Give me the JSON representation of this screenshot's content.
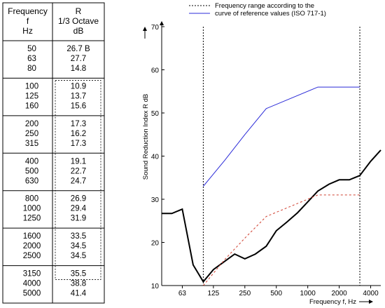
{
  "table": {
    "headers": {
      "freq": [
        "Frequency",
        "f",
        "Hz"
      ],
      "r": [
        "R",
        "1/3 Octave",
        "dB"
      ]
    },
    "groups": [
      {
        "freq": [
          "50",
          "63",
          "80"
        ],
        "r": [
          "26.7 B",
          "27.7",
          "14.8"
        ]
      },
      {
        "freq": [
          "100",
          "125",
          "160"
        ],
        "r": [
          "10.9",
          "13.7",
          "15.6"
        ]
      },
      {
        "freq": [
          "200",
          "250",
          "315"
        ],
        "r": [
          "17.3",
          "16.2",
          "17.3"
        ]
      },
      {
        "freq": [
          "400",
          "500",
          "630"
        ],
        "r": [
          "19.1",
          "22.7",
          "24.7"
        ]
      },
      {
        "freq": [
          "800",
          "1000",
          "1250"
        ],
        "r": [
          "26.9",
          "29.4",
          "31.9"
        ]
      },
      {
        "freq": [
          "1600",
          "2000",
          "2500"
        ],
        "r": [
          "33.5",
          "34.5",
          "34.5"
        ]
      },
      {
        "freq": [
          "3150",
          "4000",
          "5000"
        ],
        "r": [
          "35.5",
          "38.8",
          "41.4"
        ]
      }
    ]
  },
  "chart_data": {
    "type": "line",
    "x_scale": "log",
    "xlabel": "Frequency f, Hz",
    "ylabel": "Sound Reduction Index R dB",
    "xlim": [
      40,
      5000
    ],
    "ylim": [
      10,
      70
    ],
    "x_ticks": [
      "63",
      "125",
      "250",
      "500",
      "1000",
      "2000",
      "4000"
    ],
    "y_ticks": [
      "10",
      "20",
      "30",
      "40",
      "50",
      "60",
      "70"
    ],
    "grid": false,
    "legend_position": "top",
    "legend": [
      {
        "label": "Frequency range according to the",
        "style": "dotted",
        "color": "#000000"
      },
      {
        "label": "curve of reference values (ISO 717-1)",
        "style": "solid",
        "color": "#2b2bd8"
      }
    ],
    "frequency_range_lines": [
      100,
      3150
    ],
    "series": [
      {
        "key": "measured",
        "color": "#000000",
        "style": "solid",
        "x": [
          40,
          50,
          63,
          80,
          100,
          125,
          160,
          200,
          250,
          315,
          400,
          500,
          630,
          800,
          1000,
          1250,
          1600,
          2000,
          2500,
          3150,
          4000,
          5000
        ],
        "y": [
          26.7,
          26.7,
          27.7,
          14.8,
          10.9,
          13.7,
          15.6,
          17.3,
          16.2,
          17.3,
          19.1,
          22.7,
          24.7,
          26.9,
          29.4,
          31.9,
          33.5,
          34.5,
          34.5,
          35.5,
          38.8,
          41.4
        ]
      },
      {
        "key": "reference",
        "color": "#2b2bd8",
        "style": "solid",
        "x": [
          100,
          160,
          250,
          400,
          1250,
          3150
        ],
        "y": [
          33,
          39,
          45,
          51,
          56,
          56
        ]
      },
      {
        "key": "shifted_reference",
        "color": "#d04030",
        "style": "dashed",
        "x": [
          100,
          160,
          250,
          400,
          1250,
          3150
        ],
        "y": [
          10,
          16,
          21,
          26,
          31,
          31
        ]
      }
    ]
  }
}
